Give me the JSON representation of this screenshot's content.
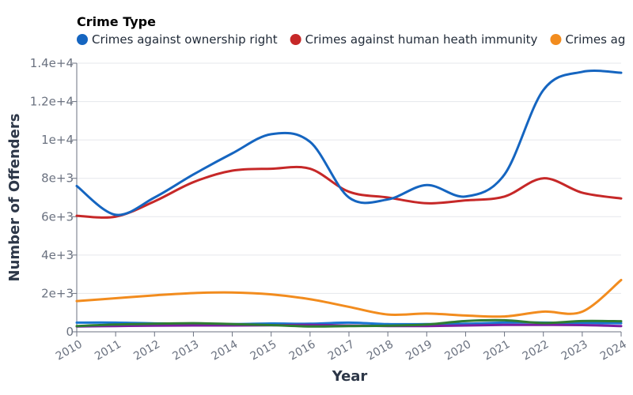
{
  "chart_data": {
    "type": "line",
    "legend_title": "Crime Type",
    "legend_placement": "top",
    "xlabel": "Year",
    "ylabel": "Number of Offenders",
    "ylim": [
      0,
      14000
    ],
    "y_ticks": [
      0,
      2000,
      4000,
      6000,
      8000,
      10000,
      12000,
      14000
    ],
    "y_tick_labels": [
      "0",
      "2e+3",
      "4e+3",
      "6e+3",
      "8e+3",
      "1e+4",
      "1.2e+4",
      "1.4e+4"
    ],
    "x": [
      2010,
      2011,
      2012,
      2013,
      2014,
      2015,
      2016,
      2017,
      2018,
      2019,
      2020,
      2021,
      2022,
      2023,
      2024
    ],
    "x_tick_labels": [
      "2010",
      "2011",
      "2012",
      "2013",
      "2014",
      "2015",
      "2016",
      "2017",
      "2018",
      "2019",
      "2020",
      "2021",
      "2022",
      "2023",
      "2024"
    ],
    "grid": true,
    "series": [
      {
        "name": "Crimes against ownership right",
        "color": "#1565c0",
        "values": [
          7600,
          6100,
          7000,
          8200,
          9300,
          10300,
          9900,
          7000,
          6900,
          7650,
          7050,
          8200,
          12600,
          13550,
          13500
        ]
      },
      {
        "name": "Crimes against human heath immunity",
        "color": "#c62828",
        "values": [
          6050,
          6000,
          6800,
          7800,
          8400,
          8500,
          8500,
          7300,
          7000,
          6700,
          6850,
          7050,
          8000,
          7250,
          6950
        ]
      },
      {
        "name": "Crimes ag",
        "color": "#f28c1e",
        "values": [
          1600,
          1750,
          1900,
          2020,
          2050,
          1950,
          1700,
          1300,
          900,
          950,
          850,
          800,
          1050,
          1050,
          2700
        ]
      },
      {
        "color": "#2e7d32",
        "values": [
          300,
          380,
          420,
          450,
          400,
          350,
          280,
          300,
          320,
          380,
          560,
          600,
          460,
          560,
          550
        ]
      },
      {
        "color": "#7b1fa2",
        "values": [
          280,
          300,
          320,
          330,
          330,
          340,
          360,
          330,
          300,
          300,
          330,
          360,
          360,
          350,
          300
        ]
      },
      {
        "color": "#1976d2",
        "values": [
          480,
          480,
          440,
          420,
          400,
          430,
          420,
          480,
          400,
          400,
          420,
          480,
          480,
          460,
          450
        ]
      }
    ]
  }
}
